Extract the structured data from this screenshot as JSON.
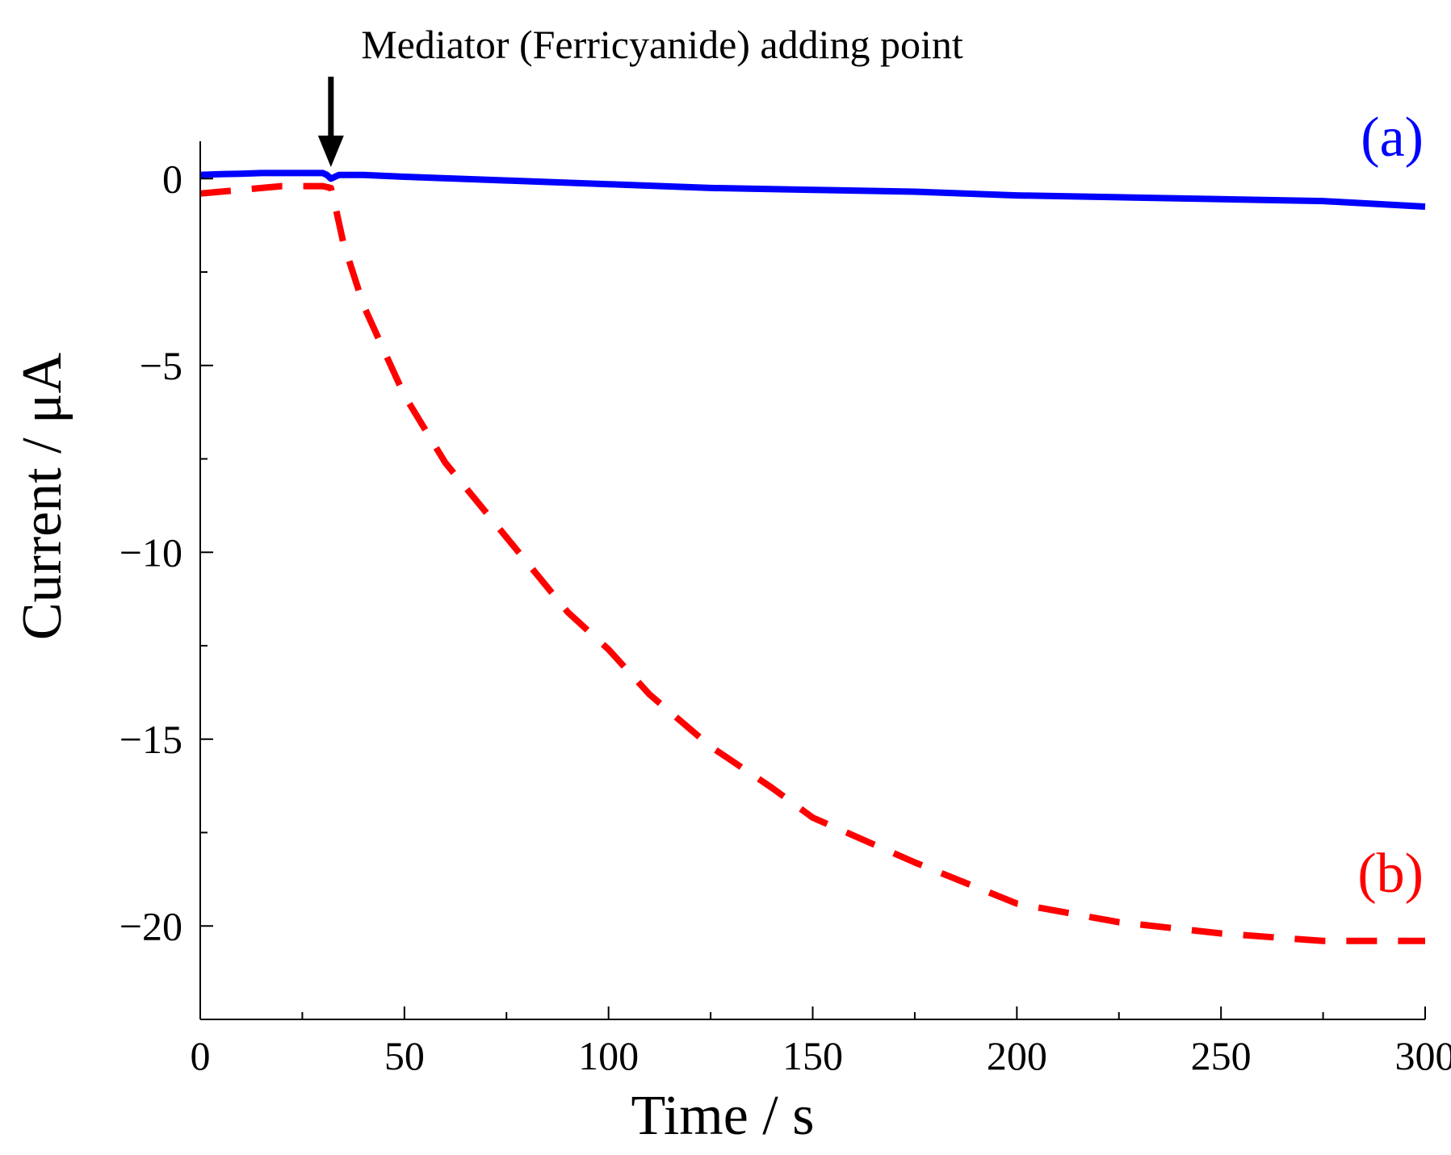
{
  "chart_data": {
    "type": "line",
    "title": "",
    "xlabel": "Time / s",
    "ylabel": "Current / μA",
    "xlim": [
      0,
      300
    ],
    "ylim": [
      -22.5,
      1
    ],
    "xticks": [
      0,
      50,
      100,
      150,
      200,
      250,
      300
    ],
    "xtick_labels": [
      "0",
      "50",
      "100",
      "150",
      "200",
      "250",
      "300"
    ],
    "yticks": [
      0,
      -5,
      -10,
      -15,
      -20
    ],
    "ytick_labels": [
      "0",
      "−5",
      "−10",
      "−15",
      "−20"
    ],
    "grid": false,
    "annotation": {
      "text": "Mediator (Ferricyanide) adding point",
      "x": 32,
      "arrow": "down"
    },
    "series": [
      {
        "label": "(a)",
        "color": "#0000ff",
        "line_style": "solid",
        "x": [
          0,
          5,
          10,
          15,
          20,
          25,
          30,
          31,
          32,
          33,
          34,
          40,
          50,
          75,
          100,
          125,
          150,
          175,
          200,
          225,
          250,
          275,
          300
        ],
        "y": [
          0.1,
          0.12,
          0.13,
          0.15,
          0.15,
          0.15,
          0.15,
          0.1,
          0.0,
          0.05,
          0.1,
          0.1,
          0.05,
          -0.05,
          -0.15,
          -0.25,
          -0.3,
          -0.35,
          -0.45,
          -0.5,
          -0.55,
          -0.6,
          -0.75
        ]
      },
      {
        "label": "(b)",
        "color": "#ff0000",
        "line_style": "dashed",
        "x": [
          0,
          5,
          10,
          15,
          20,
          25,
          30,
          32,
          33,
          35,
          40,
          50,
          60,
          75,
          90,
          100,
          110,
          125,
          140,
          150,
          175,
          200,
          225,
          250,
          275,
          300
        ],
        "y": [
          -0.4,
          -0.35,
          -0.3,
          -0.25,
          -0.2,
          -0.2,
          -0.2,
          -0.25,
          -0.7,
          -1.7,
          -3.4,
          -5.8,
          -7.6,
          -9.6,
          -11.6,
          -12.6,
          -13.8,
          -15.2,
          -16.3,
          -17.1,
          -18.3,
          -19.4,
          -19.9,
          -20.2,
          -20.4,
          -20.4
        ]
      }
    ]
  }
}
